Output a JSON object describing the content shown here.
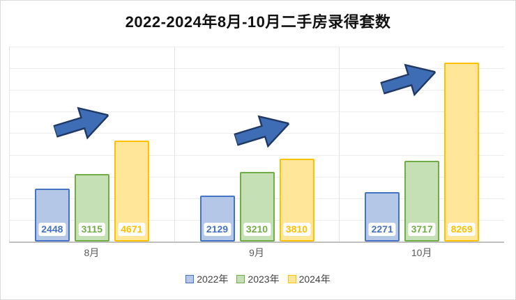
{
  "title": "2022-2024年8月-10月二手房录得套数",
  "chart_data": {
    "type": "bar",
    "title": "2022-2024年8月-10月二手房录得套数",
    "categories": [
      "8月",
      "9月",
      "10月"
    ],
    "series": [
      {
        "name": "2022年",
        "values": [
          2448,
          2129,
          2271
        ],
        "fill": "#b4c7e7",
        "border": "#4472c4",
        "label_color": "#4472c4"
      },
      {
        "name": "2023年",
        "values": [
          3115,
          3210,
          3717
        ],
        "fill": "#c5e0b4",
        "border": "#70ad47",
        "label_color": "#70ad47"
      },
      {
        "name": "2024年",
        "values": [
          4671,
          3810,
          8269
        ],
        "fill": "#ffe699",
        "border": "#ffc000",
        "label_color": "#ffc000"
      }
    ],
    "xlabel": "",
    "ylabel": "",
    "ylim": [
      0,
      9000
    ],
    "grid": true,
    "gridline_step": 1000,
    "legend_position": "bottom",
    "annotations": {
      "type": "up-right-block-arrow",
      "per_category": true,
      "color": "#3e6cb5",
      "outline": "#1f3864"
    }
  }
}
